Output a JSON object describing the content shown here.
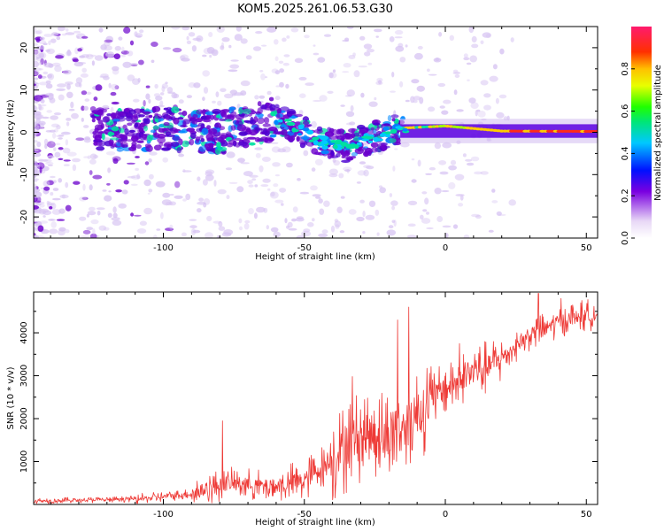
{
  "title": "KOM5.2025.261.06.53.G30",
  "colors": {
    "snr_line": "#ee3a36",
    "ridge_hot": "#ff2a1a",
    "ridge_warm": "#ffcc00",
    "ridge_mid": "#00e0a0",
    "ridge_low": "#0088ff",
    "purple_dark": "#6a00cc",
    "purple_light": "#d6c2f2"
  },
  "chart_data": [
    {
      "type": "heatmap",
      "name": "spectrogram",
      "title": "KOM5.2025.261.06.53.G30",
      "xlabel": "Height of straight line (km)",
      "ylabel": "Frequency (Hz)",
      "xlim": [
        -146,
        54
      ],
      "ylim": [
        -25,
        25
      ],
      "xticks": [
        -100,
        -50,
        0,
        50
      ],
      "yticks": [
        -20,
        -10,
        0,
        10,
        20
      ],
      "colorbar": {
        "label": "Normalized spectral amplitude",
        "range": [
          0,
          1
        ],
        "ticks": [
          0.0,
          0.2,
          0.4,
          0.6,
          0.8
        ]
      },
      "ridge": [
        {
          "x": -120,
          "f": 0.5
        },
        {
          "x": -100,
          "f": 1.0
        },
        {
          "x": -80,
          "f": 0.0
        },
        {
          "x": -60,
          "f": 3.5
        },
        {
          "x": -45,
          "f": -2.0
        },
        {
          "x": -35,
          "f": -3.5
        },
        {
          "x": -25,
          "f": -1.0
        },
        {
          "x": -15,
          "f": 1.0
        },
        {
          "x": 0,
          "f": 1.5
        },
        {
          "x": 20,
          "f": 0.3
        },
        {
          "x": 54,
          "f": 0.2
        }
      ]
    },
    {
      "type": "line",
      "name": "snr",
      "xlabel": "Height of straight line (km)",
      "ylabel": "SNR (10 * v/v)",
      "xlim": [
        -146,
        54
      ],
      "ylim": [
        0,
        4950
      ],
      "xticks": [
        -100,
        -50,
        0,
        50
      ],
      "yticks": [
        1000,
        2000,
        3000,
        4000
      ],
      "series": [
        {
          "name": "SNR",
          "x": [
            -146,
            -140,
            -130,
            -120,
            -110,
            -100,
            -90,
            -85,
            -80,
            -75,
            -70,
            -65,
            -60,
            -55,
            -50,
            -45,
            -40,
            -35,
            -30,
            -25,
            -20,
            -15,
            -10,
            -5,
            0,
            5,
            10,
            15,
            20,
            25,
            30,
            35,
            40,
            45,
            50,
            54
          ],
          "y": [
            80,
            90,
            100,
            110,
            130,
            180,
            250,
            350,
            450,
            500,
            480,
            430,
            420,
            480,
            550,
            800,
            1100,
            1350,
            1600,
            1700,
            1600,
            1800,
            2100,
            2400,
            2700,
            2900,
            3100,
            3200,
            3400,
            3700,
            3950,
            4100,
            4250,
            4350,
            4400,
            4450
          ],
          "spikes": [
            {
              "x": -79,
              "y": 1950
            },
            {
              "x": -33,
              "y": 2980
            },
            {
              "x": -17,
              "y": 4300
            },
            {
              "x": -13,
              "y": 4600
            },
            {
              "x": -4,
              "y": 3050
            },
            {
              "x": 5,
              "y": 3750
            },
            {
              "x": 33,
              "y": 4920
            },
            {
              "x": 41,
              "y": 4800
            }
          ]
        }
      ]
    }
  ]
}
